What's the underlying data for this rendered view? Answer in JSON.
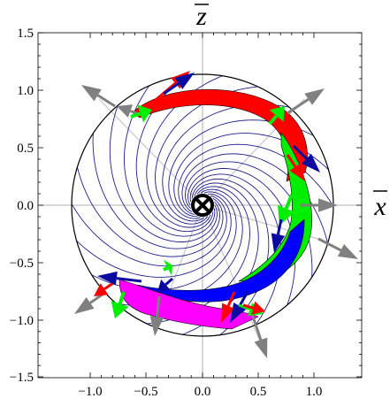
{
  "axes": {
    "z_axis_label": "z",
    "x_axis_label": "x",
    "x_ticks": [
      "−1.0",
      "−0.5",
      "0.0",
      "0.5",
      "1.0"
    ],
    "y_ticks": [
      "1.5",
      "1.0",
      "0.5",
      "0.0",
      "−0.5",
      "−1.0",
      "−1.5"
    ]
  },
  "colors": {
    "spiral": "#1f1f8a",
    "red": "#ff0000",
    "green": "#00ee00",
    "blue": "#0000ff",
    "magenta": "#ff00ff",
    "gray": "#808080",
    "arrow_blue": "#0a0aa0"
  },
  "symbols": {
    "center": "otimes (vector into the page)"
  }
}
